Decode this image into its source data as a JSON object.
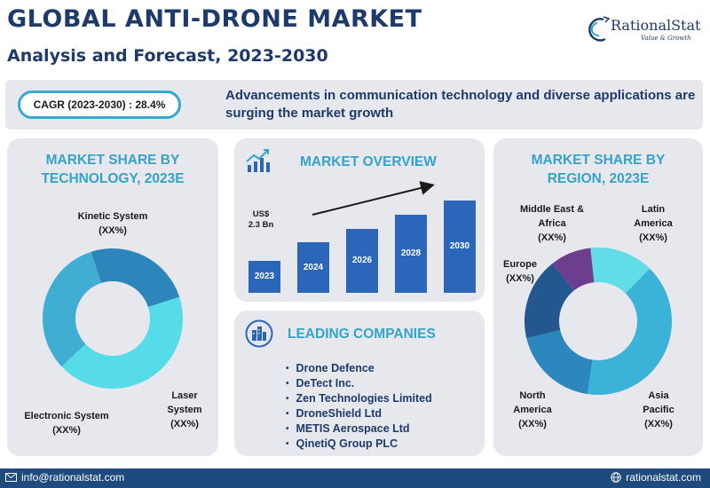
{
  "header": {
    "title": "GLOBAL ANTI-DRONE MARKET",
    "subtitle": "Analysis and Forecast, 2023-2030"
  },
  "logo": {
    "name": "RationalStat",
    "tagline": "Value & Growth",
    "icon": "logo-swoosh-icon"
  },
  "banner": {
    "cagr": "CAGR (2023-2030) : 28.4%",
    "text": "Advancements in communication technology and diverse applications are surging the market growth"
  },
  "technology": {
    "title_line1": "MARKET SHARE BY",
    "title_line2": "TECHNOLOGY, 2023E",
    "segments": [
      {
        "name": "Kinetic System",
        "value": "(XX%)",
        "share": 0.43,
        "color": "#56dbe8"
      },
      {
        "name": "Laser System",
        "value": "(XX%)",
        "share": 0.32,
        "color": "#40aed3"
      },
      {
        "name": "Electronic System",
        "value": "(XX%)",
        "share": 0.25,
        "color": "#2d86bb"
      }
    ]
  },
  "overview": {
    "title": "MARKET OVERVIEW",
    "icon": "growth-chart-icon",
    "value_label_line1": "US$",
    "value_label_line2": "2.3 Bn",
    "bars": [
      {
        "year": "2023",
        "relative": 0.28
      },
      {
        "year": "2024",
        "relative": 0.44
      },
      {
        "year": "2026",
        "relative": 0.55
      },
      {
        "year": "2028",
        "relative": 0.68
      },
      {
        "year": "2030",
        "relative": 0.8
      }
    ],
    "bar_color": "#2b66b8"
  },
  "companies": {
    "title": "LEADING COMPANIES",
    "icon": "buildings-icon",
    "items": [
      "Drone Defence",
      "DeTect Inc.",
      "Zen Technologies Limited",
      "DroneShield Ltd",
      "METIS Aerospace Ltd",
      "QinetiQ Group PLC"
    ]
  },
  "region": {
    "title_line1": "MARKET SHARE BY",
    "title_line2": "REGION, 2023E",
    "segments": [
      {
        "name_line1": "Latin",
        "name_line2": "America",
        "value": "(XX%)",
        "share": 0.14,
        "color": "#62dde8"
      },
      {
        "name_line1": "Asia",
        "name_line2": "Pacific",
        "value": "(XX%)",
        "share": 0.4,
        "color": "#3bb2d8"
      },
      {
        "name_line1": "North",
        "name_line2": "America",
        "value": "(XX%)",
        "share": 0.19,
        "color": "#2b87be"
      },
      {
        "name_line1": "Europe",
        "name_line2": "",
        "value": "(XX%)",
        "share": 0.18,
        "color": "#22578f"
      },
      {
        "name_line1": "Middle East &",
        "name_line2": "Africa",
        "value": "(XX%)",
        "share": 0.09,
        "color": "#6d3e8d"
      }
    ]
  },
  "footer": {
    "email": "info@rationalstat.com",
    "email_icon": "email-icon",
    "website": "rationalstat.com",
    "website_icon": "globe-icon"
  },
  "colors": {
    "navy": "#1e3a6b",
    "accent": "#35a3c9",
    "card_bg": "#e6e8ee",
    "footer_bg": "#1e4a7d"
  }
}
